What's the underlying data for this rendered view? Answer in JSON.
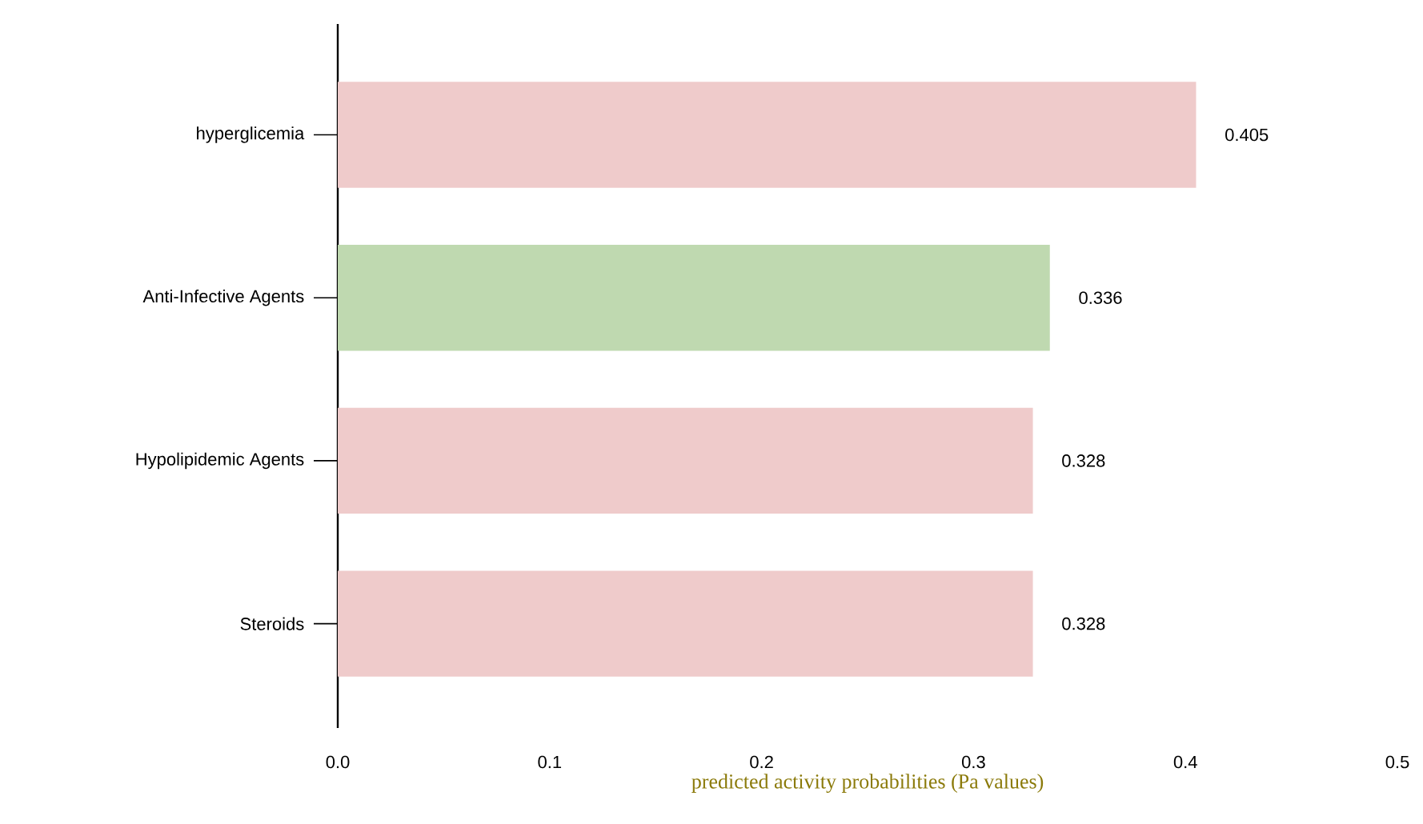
{
  "chart_data": {
    "type": "bar",
    "orientation": "horizontal",
    "xlabel": "predicted activity probabilities (Pa values)",
    "categories": [
      "hyperglicemia",
      "Anti-Infective Agents",
      "Hypolipidemic Agents",
      "Steroids"
    ],
    "values": [
      0.405,
      0.336,
      0.328,
      0.328
    ],
    "colors": [
      "#efcbcb",
      "#bfd9b0",
      "#efcbcb",
      "#efcbcb"
    ],
    "xlim": [
      0,
      0.5
    ],
    "xticks": [
      {
        "value": 0,
        "label": "0.0"
      },
      0.1,
      0.2,
      0.3,
      0.4,
      0.5
    ],
    "data_labels": true
  }
}
